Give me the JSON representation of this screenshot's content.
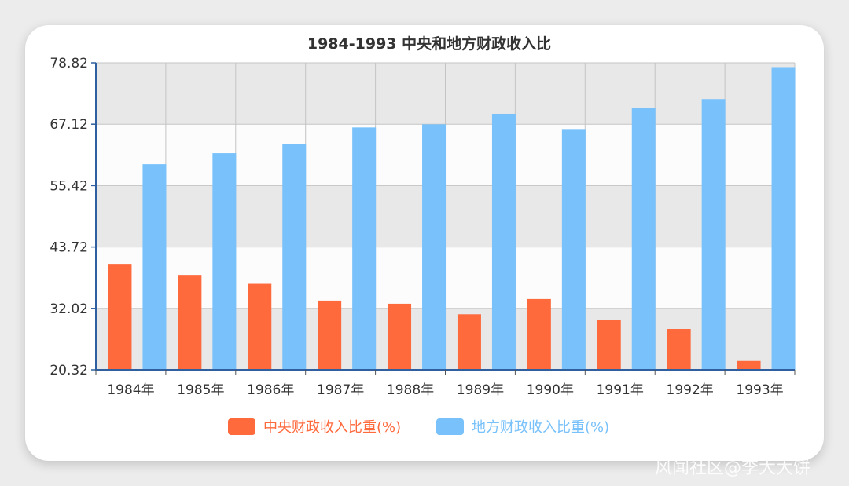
{
  "watermark": "风闻社区@李大大饼",
  "chart_data": {
    "type": "bar",
    "title": "1984-1993 中央和地方财政收入比",
    "categories": [
      "1984年",
      "1985年",
      "1986年",
      "1987年",
      "1988年",
      "1989年",
      "1990年",
      "1991年",
      "1992年",
      "1993年"
    ],
    "series": [
      {
        "name": "中央财政收入比重(%)",
        "color": "#ff6a3d",
        "values": [
          40.5,
          38.4,
          36.7,
          33.5,
          32.9,
          30.9,
          33.8,
          29.8,
          28.1,
          22.0
        ]
      },
      {
        "name": "地方财政收入比重(%)",
        "color": "#78c1fa",
        "values": [
          59.5,
          61.6,
          63.3,
          66.5,
          67.1,
          69.1,
          66.2,
          70.2,
          71.9,
          78.0
        ]
      }
    ],
    "ylim": [
      20.32,
      78.82
    ],
    "yticks": [
      "78.82",
      "67.12",
      "55.42",
      "43.72",
      "32.02",
      "20.32"
    ],
    "grid": true,
    "legend": "bottom",
    "band_colors": [
      "#e8e8e8",
      "#fcfcfc"
    ]
  }
}
